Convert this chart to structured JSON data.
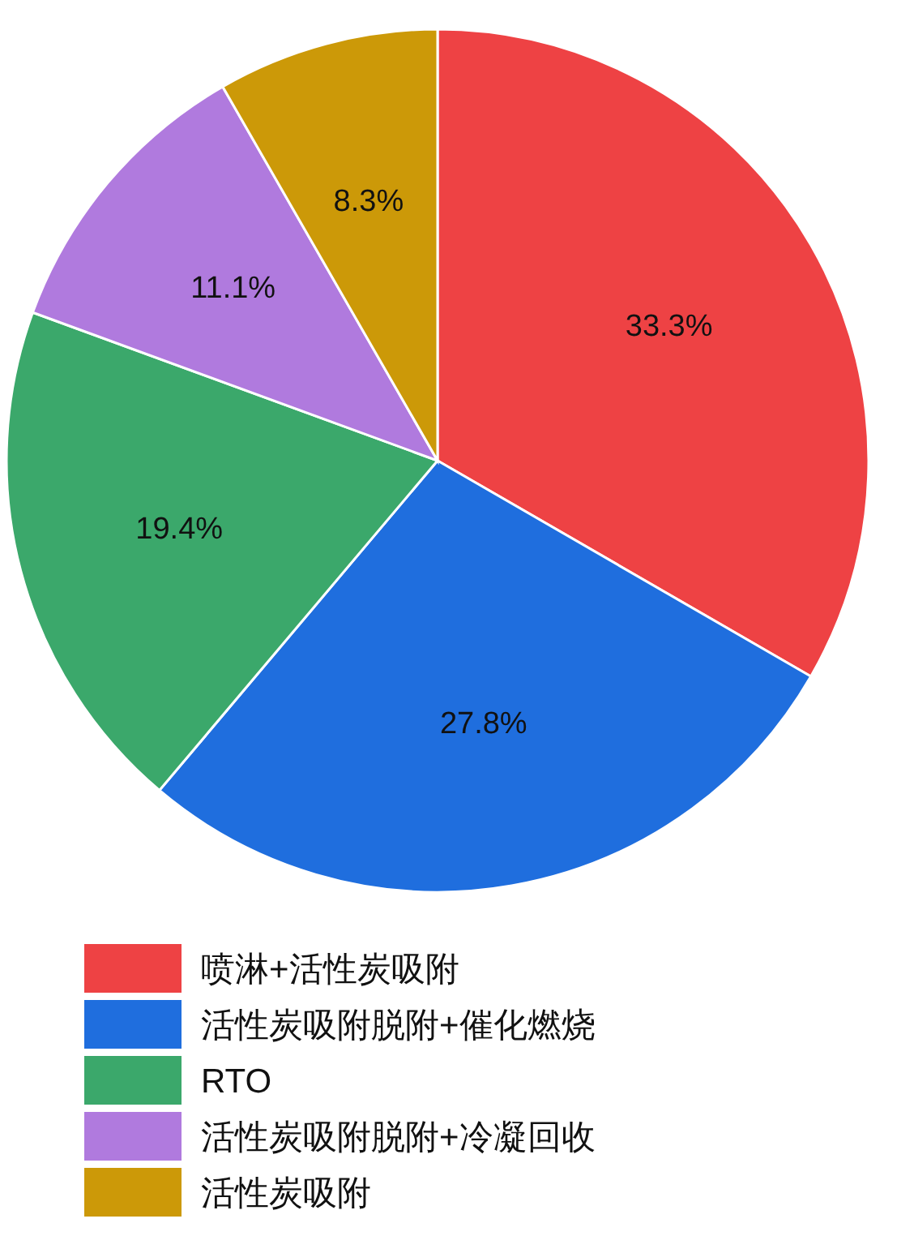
{
  "chart_data": {
    "type": "pie",
    "categories": [
      "喷淋+活性炭吸附",
      "活性炭吸附脱附+催化燃烧",
      "RTO",
      "活性炭吸附脱附+冷凝回收",
      "活性炭吸附"
    ],
    "values": [
      33.3,
      27.8,
      19.4,
      11.1,
      8.3
    ],
    "colors": [
      "#ee4244",
      "#1f6ede",
      "#3ba86b",
      "#b07ade",
      "#cc9908"
    ],
    "value_labels": [
      "33.3%",
      "27.8%",
      "19.4%",
      "11.1%",
      "8.3%"
    ],
    "legend": "bottom"
  }
}
